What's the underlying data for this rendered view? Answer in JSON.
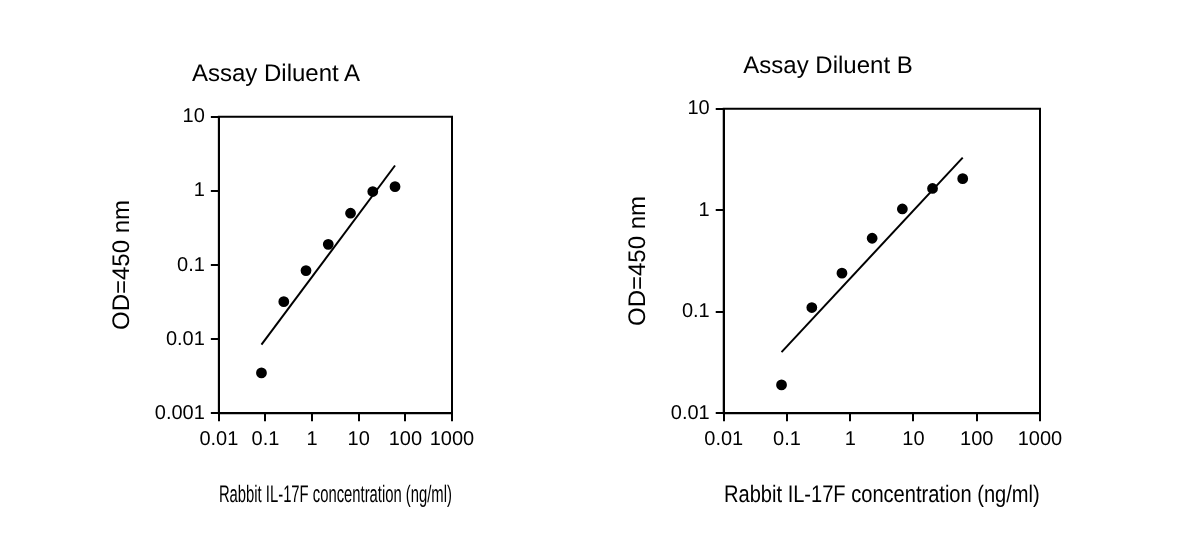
{
  "chart_data": [
    {
      "type": "scatter",
      "title": "Assay Diluent A",
      "xlabel": "Rabbit IL-17F concentration (ng/ml)",
      "ylabel": "OD=450 nm",
      "log": "xy",
      "grid": false,
      "legend": false,
      "xlim": [
        0.01,
        1000
      ],
      "xticks": [
        0.01,
        0.1,
        1,
        10,
        100,
        1000
      ],
      "ylim": [
        0.001,
        10
      ],
      "yticks": [
        0.001,
        0.01,
        0.1,
        1,
        10
      ],
      "series": [
        {
          "type": "scatter",
          "marker": "circle",
          "color": "#000000",
          "x": [
            0.082,
            0.247,
            0.74,
            2.22,
            6.67,
            20,
            60
          ],
          "values": [
            0.0035,
            0.032,
            0.084,
            0.19,
            0.5,
            0.98,
            1.14
          ]
        },
        {
          "type": "line",
          "color": "#000000",
          "x": [
            0.082,
            60
          ],
          "values": [
            0.0084,
            2.2
          ]
        }
      ]
    },
    {
      "type": "scatter",
      "title": "Assay Diluent B",
      "xlabel": "Rabbit IL-17F concentration (ng/ml)",
      "ylabel": "OD=450 nm",
      "log": "xy",
      "grid": false,
      "legend": false,
      "xlim": [
        0.01,
        1000
      ],
      "xticks": [
        0.01,
        0.1,
        1,
        10,
        100,
        1000
      ],
      "ylim": [
        0.01,
        10
      ],
      "yticks": [
        0.01,
        0.1,
        1,
        10
      ],
      "series": [
        {
          "type": "scatter",
          "marker": "circle",
          "color": "#000000",
          "x": [
            0.082,
            0.247,
            0.74,
            2.22,
            6.67,
            20,
            60
          ],
          "values": [
            0.019,
            0.11,
            0.24,
            0.53,
            1.03,
            1.64,
            2.05
          ]
        },
        {
          "type": "line",
          "color": "#000000",
          "x": [
            0.082,
            60
          ],
          "values": [
            0.04,
            3.3
          ]
        }
      ]
    }
  ]
}
